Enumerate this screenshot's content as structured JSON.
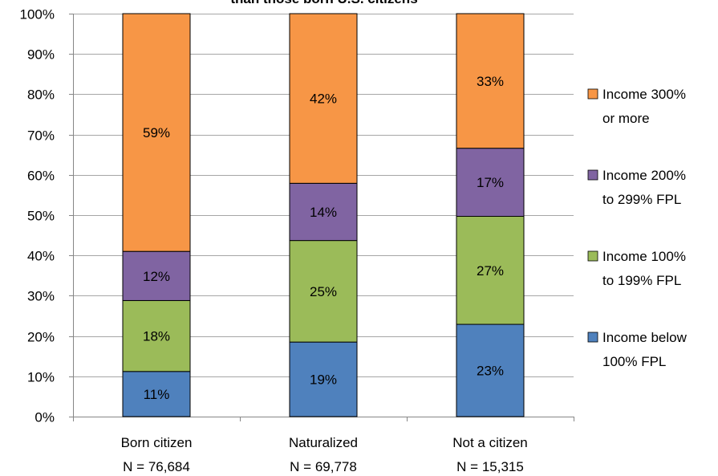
{
  "chart_data": {
    "type": "bar",
    "stacked": true,
    "title_fragment": "than those born U.S. citizens",
    "categories": [
      [
        "Born citizen",
        "N = 76,684"
      ],
      [
        "Naturalized",
        "N = 69,778"
      ],
      [
        "Not a citizen",
        "N = 15,315"
      ]
    ],
    "ylim": [
      0,
      100
    ],
    "ytick_step": 10,
    "ytick_suffix": "%",
    "grid": true,
    "legend_position": "right",
    "series": [
      {
        "name": [
          "Income below",
          "100% FPL"
        ],
        "color": "#4f81bd",
        "values": [
          11.2,
          18.5,
          22.9
        ],
        "labels": [
          "11%",
          "19%",
          "23%"
        ]
      },
      {
        "name": [
          "Income 100%",
          "to 199% FPL"
        ],
        "color": "#9bbb59",
        "values": [
          17.6,
          25.2,
          26.8
        ],
        "labels": [
          "18%",
          "25%",
          "27%"
        ]
      },
      {
        "name": [
          "Income 200%",
          "to 299% FPL"
        ],
        "color": "#8064a2",
        "values": [
          12.2,
          14.2,
          16.9
        ],
        "labels": [
          "12%",
          "14%",
          "17%"
        ]
      },
      {
        "name": [
          "Income 300%",
          "or more"
        ],
        "color": "#f79646",
        "values": [
          59.0,
          42.1,
          33.4
        ],
        "labels": [
          "59%",
          "42%",
          "33%"
        ]
      }
    ]
  }
}
